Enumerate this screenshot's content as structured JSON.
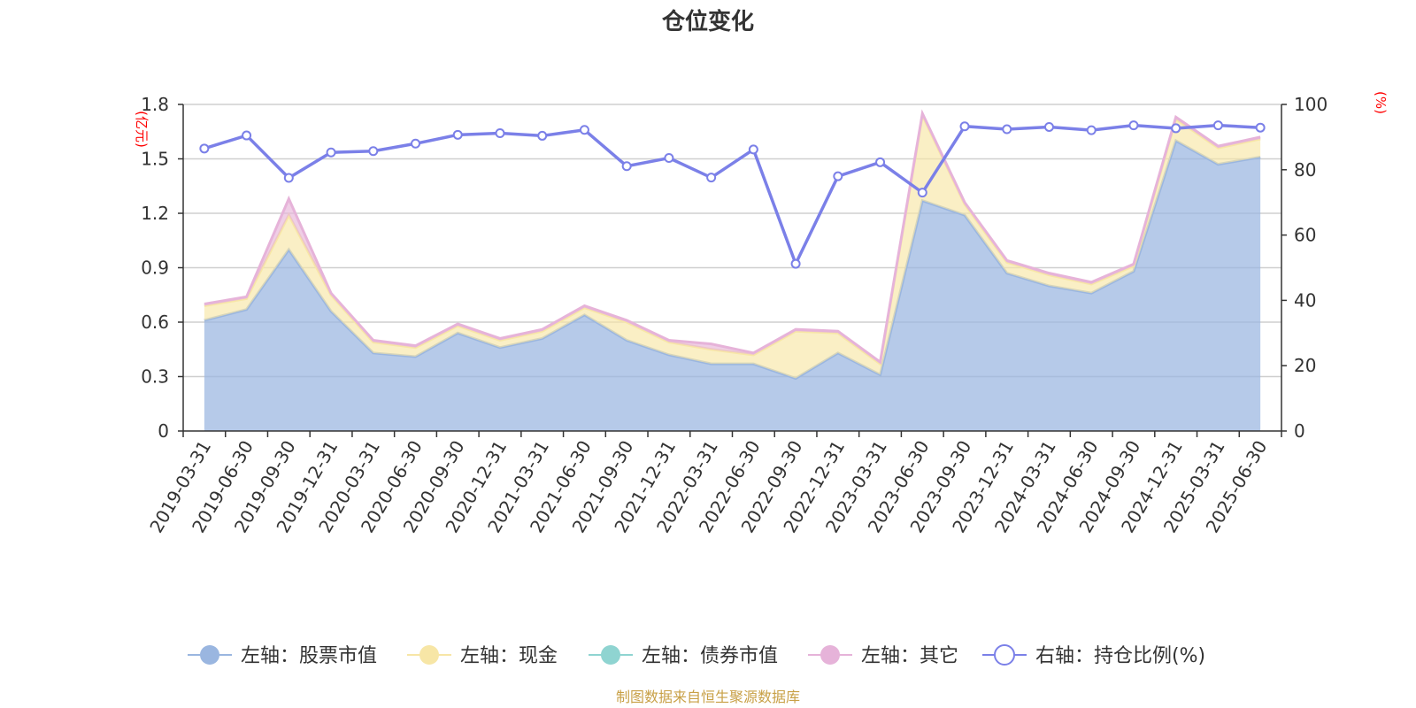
{
  "chart_data": {
    "type": "area",
    "title": "仓位变化",
    "left_axis": {
      "unit": "(亿元)",
      "ticks": [
        "0",
        "0.3",
        "0.6",
        "0.9",
        "1.2",
        "1.5",
        "1.8"
      ],
      "range": [
        0,
        1.8
      ]
    },
    "right_axis": {
      "unit": "(%)",
      "ticks": [
        "0",
        "20",
        "40",
        "60",
        "80",
        "100"
      ],
      "range": [
        0,
        100
      ]
    },
    "categories": [
      "2019-03-31",
      "2019-06-30",
      "2019-09-30",
      "2019-12-31",
      "2020-03-31",
      "2020-06-30",
      "2020-09-30",
      "2020-12-31",
      "2021-03-31",
      "2021-06-30",
      "2021-09-30",
      "2021-12-31",
      "2022-03-31",
      "2022-06-30",
      "2022-09-30",
      "2022-12-31",
      "2023-03-31",
      "2023-06-30",
      "2023-09-30",
      "2023-12-31",
      "2024-03-31",
      "2024-06-30",
      "2024-09-30",
      "2024-12-31",
      "2025-03-31",
      "2025-06-30"
    ],
    "series": [
      {
        "name": "左轴：股票市值",
        "axis": "left",
        "color": "#9ab6e0",
        "values": [
          0.61,
          0.67,
          1.0,
          0.66,
          0.43,
          0.41,
          0.54,
          0.46,
          0.51,
          0.64,
          0.5,
          0.42,
          0.37,
          0.37,
          0.29,
          0.43,
          0.31,
          1.27,
          1.19,
          0.87,
          0.8,
          0.76,
          0.88,
          1.6,
          1.47,
          1.51
        ]
      },
      {
        "name": "左轴：现金",
        "axis": "left",
        "color": "#f7e6a6",
        "values": [
          0.08,
          0.06,
          0.19,
          0.09,
          0.06,
          0.05,
          0.04,
          0.04,
          0.04,
          0.04,
          0.1,
          0.07,
          0.08,
          0.05,
          0.26,
          0.11,
          0.06,
          0.47,
          0.06,
          0.06,
          0.06,
          0.05,
          0.03,
          0.12,
          0.09,
          0.1
        ]
      },
      {
        "name": "左轴：债券市值",
        "axis": "left",
        "color": "#8fd4d1",
        "values": [
          0,
          0,
          0,
          0,
          0,
          0,
          0,
          0,
          0,
          0,
          0,
          0,
          0,
          0,
          0,
          0,
          0,
          0,
          0,
          0,
          0,
          0,
          0,
          0,
          0,
          0
        ]
      },
      {
        "name": "左轴：其它",
        "axis": "left",
        "color": "#e6b3d9",
        "values": [
          0.01,
          0.01,
          0.09,
          0.01,
          0.01,
          0.01,
          0.01,
          0.01,
          0.01,
          0.01,
          0.01,
          0.01,
          0.03,
          0.01,
          0.01,
          0.01,
          0.01,
          0.01,
          0.01,
          0.01,
          0.01,
          0.01,
          0.01,
          0.01,
          0.01,
          0.01
        ]
      },
      {
        "name": "右轴：持仓比例(%)",
        "axis": "right",
        "color": "#7b80e8",
        "values": [
          86.5,
          90.5,
          77.5,
          85.3,
          85.7,
          88.0,
          90.7,
          91.2,
          90.4,
          92.2,
          81.1,
          83.6,
          77.6,
          86.2,
          51.2,
          78.0,
          82.3,
          73.0,
          93.3,
          92.4,
          93.1,
          92.1,
          93.6,
          92.7,
          93.6,
          92.9
        ]
      }
    ],
    "grid": true,
    "legend_position": "bottom",
    "source_note": "制图数据来自恒生聚源数据库"
  }
}
